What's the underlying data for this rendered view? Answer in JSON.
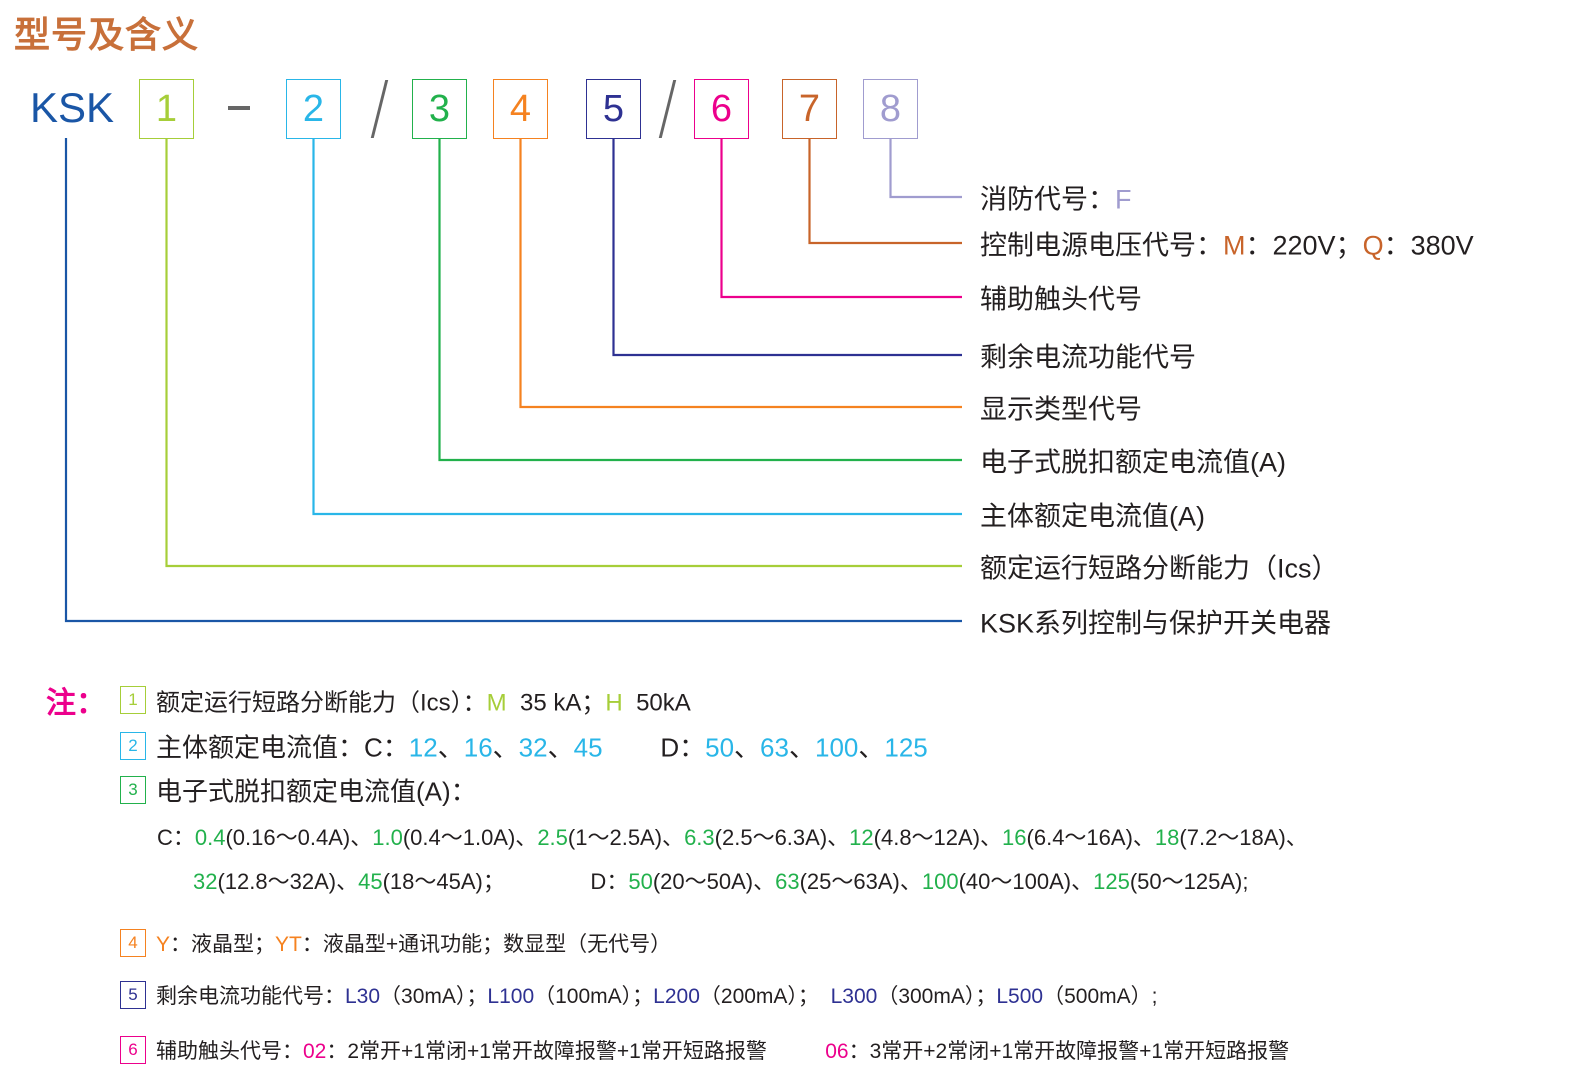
{
  "title": "型号及含义",
  "colors": {
    "title": "#c8703a",
    "ksk": "#1a56a6",
    "d1": "#a6ce39",
    "d2": "#29b6e8",
    "d3": "#22b14c",
    "d4": "#f58220",
    "d5": "#2e3192",
    "d6": "#ec008c",
    "d7": "#c8642a",
    "d8": "#a09ccf",
    "text": "#231f20",
    "note": "#ec008c",
    "sep": "#666666"
  },
  "model": {
    "prefix": "KSK",
    "dash": "-",
    "slash": "/",
    "digits": [
      "1",
      "2",
      "3",
      "4",
      "5",
      "6",
      "7",
      "8"
    ]
  },
  "labels": [
    [
      {
        "t": "消防代号：",
        "c": "text"
      },
      {
        "t": "F",
        "c": "d8"
      }
    ],
    [
      {
        "t": "控制电源电压代号：",
        "c": "text"
      },
      {
        "t": "M",
        "c": "d7"
      },
      {
        "t": "：220V；",
        "c": "text"
      },
      {
        "t": "Q",
        "c": "d7"
      },
      {
        "t": "：380V",
        "c": "text"
      }
    ],
    [
      {
        "t": "辅助触头代号",
        "c": "text"
      }
    ],
    [
      {
        "t": "剩余电流功能代号",
        "c": "text"
      }
    ],
    [
      {
        "t": "显示类型代号",
        "c": "text"
      }
    ],
    [
      {
        "t": "电子式脱扣额定电流值(A)",
        "c": "text"
      }
    ],
    [
      {
        "t": "主体额定电流值(A)",
        "c": "text"
      }
    ],
    [
      {
        "t": "额定运行短路分断能力（Ics）",
        "c": "text"
      }
    ],
    [
      {
        "t": "KSK系列控制与保护开关电器",
        "c": "text"
      }
    ]
  ],
  "notes": {
    "heading": "注：",
    "lines": [
      {
        "box": "1",
        "segs": [
          {
            "t": "额定运行短路分断能力（Ics）：",
            "c": "text"
          },
          {
            "t": "M",
            "c": "d1"
          },
          {
            "t": "  35 kA；",
            "c": "text"
          },
          {
            "t": "H",
            "c": "d1"
          },
          {
            "t": "  50kA",
            "c": "text"
          }
        ]
      },
      {
        "box": "2",
        "segs": [
          {
            "t": "主体额定电流值：",
            "c": "text"
          },
          {
            "t": "C：",
            "c": "text"
          },
          {
            "t": "12",
            "c": "d2"
          },
          {
            "t": "、",
            "c": "text"
          },
          {
            "t": "16",
            "c": "d2"
          },
          {
            "t": "、",
            "c": "text"
          },
          {
            "t": "32",
            "c": "d2"
          },
          {
            "t": "、",
            "c": "text"
          },
          {
            "t": "45",
            "c": "d2"
          },
          {
            "t": "        D：",
            "c": "text"
          },
          {
            "t": "50",
            "c": "d2"
          },
          {
            "t": "、",
            "c": "text"
          },
          {
            "t": "63",
            "c": "d2"
          },
          {
            "t": "、",
            "c": "text"
          },
          {
            "t": "100",
            "c": "d2"
          },
          {
            "t": "、",
            "c": "text"
          },
          {
            "t": "125",
            "c": "d2"
          }
        ]
      },
      {
        "box": "3",
        "segs": [
          {
            "t": "电子式脱扣额定电流值(A)：",
            "c": "text"
          }
        ]
      },
      {
        "box": "",
        "segs": [
          {
            "t": "C：",
            "c": "text"
          },
          {
            "t": "0.4",
            "c": "d3"
          },
          {
            "t": "(0.16～0.4A)、",
            "c": "text"
          },
          {
            "t": "1.0",
            "c": "d3"
          },
          {
            "t": "(0.4～1.0A)、",
            "c": "text"
          },
          {
            "t": "2.5",
            "c": "d3"
          },
          {
            "t": "(1～2.5A)、",
            "c": "text"
          },
          {
            "t": "6.3",
            "c": "d3"
          },
          {
            "t": "(2.5～6.3A)、",
            "c": "text"
          },
          {
            "t": "12",
            "c": "d3"
          },
          {
            "t": "(4.8～12A)、",
            "c": "text"
          },
          {
            "t": "16",
            "c": "d3"
          },
          {
            "t": "(6.4～16A)、",
            "c": "text"
          },
          {
            "t": "18",
            "c": "d3"
          },
          {
            "t": "(7.2～18A)、",
            "c": "text"
          }
        ]
      },
      {
        "box": "",
        "segs": [
          {
            "t": "32",
            "c": "d3"
          },
          {
            "t": "(12.8～32A)、",
            "c": "text"
          },
          {
            "t": "45",
            "c": "d3"
          },
          {
            "t": "(18～45A)；              D：",
            "c": "text"
          },
          {
            "t": "50",
            "c": "d3"
          },
          {
            "t": "(20～50A)、",
            "c": "text"
          },
          {
            "t": "63",
            "c": "d3"
          },
          {
            "t": "(25～63A)、",
            "c": "text"
          },
          {
            "t": "100",
            "c": "d3"
          },
          {
            "t": "(40～100A)、",
            "c": "text"
          },
          {
            "t": "125",
            "c": "d3"
          },
          {
            "t": "(50～125A);",
            "c": "text"
          }
        ]
      },
      {
        "box": "4",
        "segs": [
          {
            "t": "Y",
            "c": "d4"
          },
          {
            "t": "：液晶型；",
            "c": "text"
          },
          {
            "t": "YT",
            "c": "d4"
          },
          {
            "t": "：液晶型+通讯功能；数显型（无代号）",
            "c": "text"
          }
        ]
      },
      {
        "box": "5",
        "segs": [
          {
            "t": "剩余电流功能代号：",
            "c": "text"
          },
          {
            "t": "L30",
            "c": "d5"
          },
          {
            "t": "（30mA）；",
            "c": "text"
          },
          {
            "t": "L100",
            "c": "d5"
          },
          {
            "t": "（100mA）；",
            "c": "text"
          },
          {
            "t": "L200",
            "c": "d5"
          },
          {
            "t": "（200mA）；  ",
            "c": "text"
          },
          {
            "t": "L300",
            "c": "d5"
          },
          {
            "t": "（300mA）；",
            "c": "text"
          },
          {
            "t": "L500",
            "c": "d5"
          },
          {
            "t": "（500mA）;",
            "c": "text"
          }
        ]
      },
      {
        "box": "6",
        "segs": [
          {
            "t": "辅助触头代号：",
            "c": "text"
          },
          {
            "t": "02",
            "c": "d6"
          },
          {
            "t": "：2常开+1常闭+1常开故障报警+1常开短路报警          ",
            "c": "text"
          },
          {
            "t": "06",
            "c": "d6"
          },
          {
            "t": "：3常开+2常闭+1常开故障报警+1常开短路报警",
            "c": "text"
          }
        ]
      }
    ]
  }
}
